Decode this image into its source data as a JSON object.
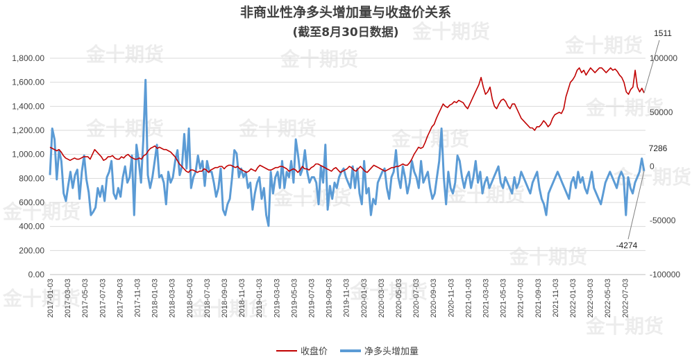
{
  "chart_data": {
    "type": "line",
    "title": "非商业性净多头增加量与收盘价关系",
    "subtitle": "(截至8月30日数据)",
    "watermark": "金十期货",
    "colors": {
      "close": "#c00000",
      "net": "#5b9bd5",
      "text": "#404040"
    },
    "x_start": "2017-01-03",
    "x_end": "2022-08-30",
    "x_tick_labels": [
      "2017-01-03",
      "2017-03-03",
      "2017-05-03",
      "2017-07-03",
      "2017-09-03",
      "2017-11-03",
      "2018-01-03",
      "2018-03-03",
      "2018-05-03",
      "2018-07-03",
      "2018-09-03",
      "2018-11-03",
      "2019-01-03",
      "2019-03-03",
      "2019-05-03",
      "2019-07-03",
      "2019-09-03",
      "2019-11-03",
      "2020-01-03",
      "2020-03-03",
      "2020-05-03",
      "2020-07-03",
      "2020-09-03",
      "2020-11-03",
      "2021-01-03",
      "2021-03-03",
      "2021-05-03",
      "2021-07-03",
      "2021-09-03",
      "2021-11-03",
      "2022-01-03",
      "2022-03-03",
      "2022-05-03",
      "2022-07-03"
    ],
    "y_left": {
      "ticks": [
        "0.00",
        "200.00",
        "400.00",
        "600.00",
        "800.00",
        "1,000.00",
        "1,200.00",
        "1,400.00",
        "1,600.00",
        "1,800.00"
      ],
      "lim": [
        0,
        1800
      ]
    },
    "y_right": {
      "ticks": [
        "-100000",
        "-50000",
        "0",
        "50000",
        "100000"
      ],
      "lim": [
        -100000,
        100000
      ]
    },
    "grid": true,
    "legend_position": "bottom",
    "annotations": [
      "1511",
      "7286",
      "-4274"
    ],
    "series": [
      {
        "name": "收盘价",
        "axis": "left",
        "values": [
          1060,
          1050,
          1040,
          1030,
          1040,
          1020,
          990,
          970,
          960,
          950,
          960,
          970,
          960,
          960,
          970,
          980,
          980,
          980,
          960,
          1000,
          1040,
          1020,
          1000,
          980,
          950,
          960,
          980,
          980,
          990,
          970,
          960,
          960,
          980,
          970,
          990,
          1000,
          980,
          970,
          960,
          960,
          970,
          960,
          990,
          1000,
          1030,
          1050,
          1060,
          1070,
          1050,
          1060,
          1050,
          1040,
          1040,
          1030,
          1020,
          1000,
          980,
          950,
          920,
          900,
          880,
          860,
          850,
          870,
          870,
          860,
          850,
          860,
          860,
          880,
          870,
          850,
          870,
          880,
          890,
          890,
          900,
          900,
          880,
          900,
          910,
          910,
          900,
          890,
          900,
          880,
          870,
          860,
          850,
          860,
          880,
          870,
          860,
          890,
          910,
          900,
          890,
          880,
          870,
          870,
          880,
          890,
          890,
          900,
          900,
          890,
          880,
          860,
          870,
          880,
          870,
          850,
          870,
          900,
          880,
          880,
          870,
          890,
          900,
          920,
          920,
          910,
          900,
          890,
          880,
          870,
          860,
          880,
          890,
          870,
          850,
          860,
          870,
          880,
          900,
          890,
          870,
          860,
          880,
          900,
          880,
          860,
          850,
          870,
          890,
          910,
          900,
          890,
          880,
          870,
          860,
          870,
          880,
          890,
          890,
          900,
          900,
          910,
          920,
          910,
          910,
          930,
          960,
          1000,
          1030,
          1060,
          1050,
          1060,
          1100,
          1150,
          1190,
          1230,
          1250,
          1300,
          1340,
          1380,
          1420,
          1400,
          1390,
          1410,
          1420,
          1440,
          1430,
          1450,
          1440,
          1430,
          1400,
          1380,
          1420,
          1460,
          1500,
          1540,
          1580,
          1640,
          1560,
          1500,
          1520,
          1560,
          1460,
          1400,
          1380,
          1420,
          1450,
          1460,
          1440,
          1400,
          1380,
          1420,
          1420,
          1380,
          1340,
          1300,
          1280,
          1260,
          1240,
          1220,
          1220,
          1200,
          1230,
          1230,
          1250,
          1280,
          1260,
          1230,
          1250,
          1300,
          1330,
          1340,
          1350,
          1340,
          1380,
          1480,
          1540,
          1600,
          1620,
          1650,
          1700,
          1720,
          1680,
          1700,
          1660,
          1690,
          1720,
          1700,
          1680,
          1700,
          1720,
          1720,
          1700,
          1680,
          1700,
          1720,
          1700,
          1710,
          1690,
          1660,
          1640,
          1600,
          1520,
          1500,
          1540,
          1560,
          1700,
          1560,
          1520,
          1550,
          1511
        ]
      },
      {
        "name": "净多头增加量",
        "axis": "right",
        "values": [
          -8000,
          35000,
          25000,
          -12000,
          15000,
          5000,
          -25000,
          -32000,
          -18000,
          -5000,
          -20000,
          -8000,
          -3000,
          -30000,
          -5000,
          10000,
          -12000,
          -24000,
          -45000,
          -42000,
          -38000,
          -20000,
          -28000,
          -18000,
          -32000,
          -10000,
          -5000,
          5000,
          -25000,
          -30000,
          -20000,
          -28000,
          -10000,
          0,
          -15000,
          -10000,
          10000,
          -45000,
          20000,
          5000,
          -15000,
          25000,
          80000,
          -8000,
          -20000,
          -10000,
          5000,
          20000,
          -10000,
          -8000,
          -15000,
          -35000,
          -5000,
          -15000,
          -10000,
          5000,
          15000,
          -8000,
          0,
          30000,
          -2000,
          35000,
          -20000,
          -10000,
          -5000,
          10000,
          -2000,
          5000,
          -18000,
          5000,
          -5000,
          -5000,
          -15000,
          -28000,
          -20000,
          -2000,
          -40000,
          -45000,
          -35000,
          -30000,
          -10000,
          15000,
          12000,
          -10000,
          -2000,
          -10000,
          -5000,
          -20000,
          -15000,
          -40000,
          -25000,
          -15000,
          -10000,
          -30000,
          -20000,
          -45000,
          -55000,
          -5000,
          -25000,
          -10000,
          -5000,
          -20000,
          5000,
          -20000,
          -5000,
          -10000,
          5000,
          -15000,
          25000,
          10000,
          -8000,
          -2000,
          15000,
          -5000,
          -15000,
          -10000,
          -10000,
          -15000,
          -35000,
          0,
          -15000,
          20000,
          -40000,
          -18000,
          -30000,
          -15000,
          -20000,
          -10000,
          -5000,
          -2000,
          -10000,
          -15000,
          -20000,
          0,
          -20000,
          -2000,
          -25000,
          -35000,
          5000,
          -25000,
          -20000,
          -45000,
          -30000,
          -35000,
          -15000,
          -10000,
          -5000,
          -2000,
          -20000,
          -30000,
          -10000,
          -5000,
          15000,
          -10000,
          -20000,
          0,
          -10000,
          -25000,
          -15000,
          5000,
          -5000,
          -10000,
          -20000,
          5000,
          -15000,
          -10000,
          -5000,
          -20000,
          -30000,
          -25000,
          -10000,
          5000,
          35000,
          -10000,
          -35000,
          -5000,
          -20000,
          -25000,
          -15000,
          10000,
          5000,
          -10000,
          -20000,
          -10000,
          -5000,
          -20000,
          -10000,
          5000,
          -15000,
          -5000,
          -25000,
          -15000,
          -10000,
          -20000,
          -15000,
          -10000,
          -5000,
          0,
          -15000,
          -20000,
          -10000,
          -15000,
          -20000,
          -25000,
          -10000,
          -20000,
          -15000,
          -5000,
          -10000,
          -15000,
          -20000,
          -25000,
          -15000,
          -10000,
          -5000,
          -20000,
          -30000,
          -35000,
          -45000,
          -25000,
          -20000,
          -15000,
          -10000,
          -5000,
          -10000,
          -15000,
          -20000,
          -25000,
          -30000,
          -15000,
          -10000,
          -20000,
          -5000,
          -15000,
          -10000,
          -20000,
          -25000,
          -15000,
          -5000,
          -20000,
          -25000,
          -30000,
          -35000,
          -25000,
          -15000,
          -10000,
          -5000,
          -10000,
          -15000,
          -20000,
          -10000,
          -5000,
          -10000,
          -45000,
          -10000,
          -20000,
          -25000,
          -15000,
          -10000,
          -5000,
          7286,
          -4274
        ]
      }
    ]
  }
}
